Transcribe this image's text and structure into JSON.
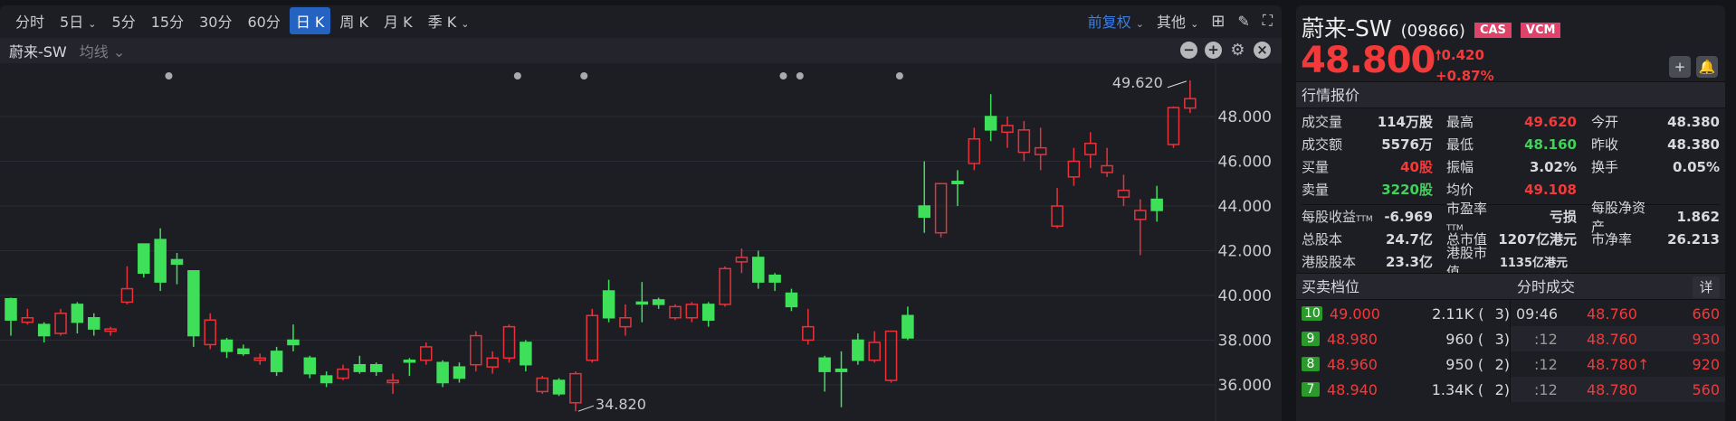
{
  "toolbar": {
    "periods": [
      "分时",
      "5日",
      "5分",
      "15分",
      "30分",
      "60分",
      "日 K",
      "周 K",
      "月 K",
      "季 K"
    ],
    "active": "日 K",
    "adjust": "前复权",
    "other": "其他"
  },
  "chart_header": {
    "title": "蔚来-SW",
    "indicator": "均线"
  },
  "chart_data": {
    "type": "candlestick",
    "ylim": [
      34.5,
      49.8
    ],
    "y_ticks": [
      "48.000",
      "46.000",
      "44.000",
      "42.000",
      "40.000",
      "38.000",
      "36.000"
    ],
    "candles_ohlc": [
      [
        39.85,
        39.9,
        38.2,
        38.9
      ],
      [
        38.8,
        39.4,
        38.7,
        39.0
      ],
      [
        38.7,
        38.8,
        37.9,
        38.2
      ],
      [
        38.3,
        39.4,
        38.2,
        39.2
      ],
      [
        39.6,
        39.7,
        38.3,
        38.8
      ],
      [
        39.0,
        39.2,
        38.2,
        38.5
      ],
      [
        38.4,
        38.6,
        38.2,
        38.5
      ],
      [
        39.7,
        41.3,
        39.6,
        40.3
      ],
      [
        42.3,
        42.3,
        40.8,
        41.0
      ],
      [
        42.5,
        43.0,
        40.2,
        40.6
      ],
      [
        41.6,
        41.9,
        40.5,
        41.4
      ],
      [
        41.1,
        41.1,
        37.7,
        38.2
      ],
      [
        37.8,
        39.2,
        37.6,
        38.9
      ],
      [
        38.0,
        38.1,
        37.2,
        37.5
      ],
      [
        37.6,
        37.8,
        37.3,
        37.4
      ],
      [
        37.1,
        37.4,
        36.9,
        37.2
      ],
      [
        37.5,
        37.7,
        36.4,
        36.6
      ],
      [
        38.0,
        38.7,
        37.5,
        37.8
      ],
      [
        37.2,
        37.3,
        36.3,
        36.5
      ],
      [
        36.4,
        36.6,
        35.9,
        36.1
      ],
      [
        36.3,
        36.9,
        36.2,
        36.7
      ],
      [
        36.9,
        37.3,
        36.5,
        36.6
      ],
      [
        36.9,
        37.0,
        36.4,
        36.6
      ],
      [
        36.1,
        36.5,
        35.6,
        36.2
      ],
      [
        37.1,
        37.2,
        36.4,
        37.05
      ],
      [
        37.1,
        37.9,
        36.9,
        37.7
      ],
      [
        37.0,
        37.1,
        35.9,
        36.1
      ],
      [
        36.8,
        37.0,
        36.1,
        36.3
      ],
      [
        36.9,
        38.4,
        36.6,
        38.2
      ],
      [
        36.8,
        37.5,
        36.5,
        37.2
      ],
      [
        37.2,
        38.7,
        37.0,
        38.6
      ],
      [
        37.9,
        38.0,
        36.6,
        36.9
      ],
      [
        35.7,
        36.4,
        35.6,
        36.3
      ],
      [
        36.2,
        36.3,
        35.5,
        35.6
      ],
      [
        35.2,
        36.6,
        34.82,
        36.5
      ],
      [
        37.1,
        39.4,
        37.0,
        39.1
      ],
      [
        40.2,
        40.7,
        38.8,
        39.0
      ],
      [
        38.6,
        39.6,
        38.2,
        39.0
      ],
      [
        39.7,
        40.6,
        38.8,
        39.65
      ],
      [
        39.8,
        39.9,
        39.4,
        39.6
      ],
      [
        39.0,
        39.6,
        38.9,
        39.5
      ],
      [
        39.0,
        39.7,
        38.8,
        39.6
      ],
      [
        39.6,
        39.7,
        38.6,
        38.9
      ],
      [
        39.6,
        41.3,
        39.5,
        41.2
      ],
      [
        41.5,
        42.1,
        41.0,
        41.7
      ],
      [
        41.7,
        42.0,
        40.3,
        40.6
      ],
      [
        40.9,
        41.0,
        40.2,
        40.6
      ],
      [
        40.1,
        40.3,
        39.3,
        39.5
      ],
      [
        38.0,
        39.4,
        37.8,
        38.6
      ],
      [
        37.2,
        37.3,
        35.7,
        36.6
      ],
      [
        36.7,
        37.5,
        35.0,
        36.6
      ],
      [
        38.0,
        38.3,
        36.9,
        37.1
      ],
      [
        37.1,
        38.4,
        37.0,
        37.9
      ],
      [
        36.2,
        38.4,
        36.1,
        38.4
      ],
      [
        39.1,
        39.5,
        38.0,
        38.1
      ],
      [
        44.0,
        46.0,
        42.8,
        43.5
      ],
      [
        42.8,
        45.0,
        42.6,
        45.0
      ],
      [
        45.1,
        45.6,
        44.0,
        45.0
      ],
      [
        45.9,
        47.5,
        45.6,
        47.0
      ],
      [
        48.0,
        49.0,
        46.9,
        47.4
      ],
      [
        47.3,
        48.0,
        46.6,
        47.6
      ],
      [
        46.4,
        47.8,
        46.0,
        47.4
      ],
      [
        46.3,
        47.5,
        45.6,
        46.6
      ],
      [
        43.1,
        44.8,
        43.0,
        44.0
      ],
      [
        45.3,
        46.6,
        44.9,
        46.0
      ],
      [
        46.3,
        47.3,
        45.7,
        46.8
      ],
      [
        45.5,
        46.6,
        45.3,
        45.8
      ],
      [
        44.4,
        45.4,
        44.0,
        44.7
      ],
      [
        43.4,
        44.3,
        41.8,
        43.8
      ],
      [
        44.3,
        44.9,
        43.3,
        43.8
      ],
      [
        46.75,
        48.45,
        46.6,
        48.4
      ],
      [
        48.38,
        49.62,
        48.16,
        48.8
      ]
    ],
    "event_marker_candles": [
      10,
      31,
      35,
      47,
      48,
      54
    ],
    "annotations": {
      "high": "49.620",
      "low": "34.820"
    },
    "up_color": "#e8323a",
    "down_color": "#3ee05a",
    "grid": true
  },
  "quote": {
    "name": "蔚来-SW",
    "code": "(09866)",
    "badges": [
      "CAS",
      "VCM"
    ],
    "price": "48.800",
    "change": "0.420",
    "change_pct": "+0.87%"
  },
  "section_quote": "行情报价",
  "stats": [
    [
      {
        "l": "成交量",
        "v": "114万股",
        "c": ""
      },
      {
        "l": "最高",
        "v": "49.620",
        "c": "red"
      },
      {
        "l": "今开",
        "v": "48.380",
        "c": ""
      }
    ],
    [
      {
        "l": "成交额",
        "v": "5576万",
        "c": ""
      },
      {
        "l": "最低",
        "v": "48.160",
        "c": "green"
      },
      {
        "l": "昨收",
        "v": "48.380",
        "c": ""
      }
    ],
    [
      {
        "l": "买量",
        "v": "40股",
        "c": "red"
      },
      {
        "l": "振幅",
        "v": "3.02%",
        "c": ""
      },
      {
        "l": "换手",
        "v": "0.05%",
        "c": ""
      }
    ],
    [
      {
        "l": "卖量",
        "v": "3220股",
        "c": "green"
      },
      {
        "l": "均价",
        "v": "49.108",
        "c": "red"
      },
      {
        "l": "",
        "v": "",
        "c": ""
      }
    ]
  ],
  "fundamentals": [
    [
      {
        "l": "每股收益",
        "sub": "TTM",
        "v": "-6.969"
      },
      {
        "l": "市盈率",
        "sub": "TTM",
        "v": "亏损"
      },
      {
        "l": "每股净资产",
        "v": "1.862"
      }
    ],
    [
      {
        "l": "总股本",
        "v": "24.7亿"
      },
      {
        "l": "总市值",
        "v": "1207亿港元"
      },
      {
        "l": "市净率",
        "v": "26.213"
      }
    ],
    [
      {
        "l": "港股股本",
        "v": "23.3亿"
      },
      {
        "l": "港股市值",
        "v": "1135亿港元"
      },
      {
        "l": "",
        "v": ""
      }
    ]
  ],
  "order_book": {
    "title": "买卖档位",
    "rows": [
      {
        "level": "10",
        "price": "49.000",
        "qty": "2.11K (",
        "n": "3)"
      },
      {
        "level": "9",
        "price": "48.980",
        "qty": "960 (",
        "n": "3)"
      },
      {
        "level": "8",
        "price": "48.960",
        "qty": "950 (",
        "n": "2)"
      },
      {
        "level": "7",
        "price": "48.940",
        "qty": "1.34K (",
        "n": "2)"
      }
    ]
  },
  "trades": {
    "title": "分时成交",
    "detail": "详",
    "rows": [
      {
        "time": "09:46",
        "price": "48.760",
        "vol": "660"
      },
      {
        "time": ":12",
        "price": "48.760",
        "vol": "930"
      },
      {
        "time": ":12",
        "price": "48.780↑",
        "vol": "920"
      },
      {
        "time": ":12",
        "price": "48.780",
        "vol": "560"
      }
    ]
  }
}
